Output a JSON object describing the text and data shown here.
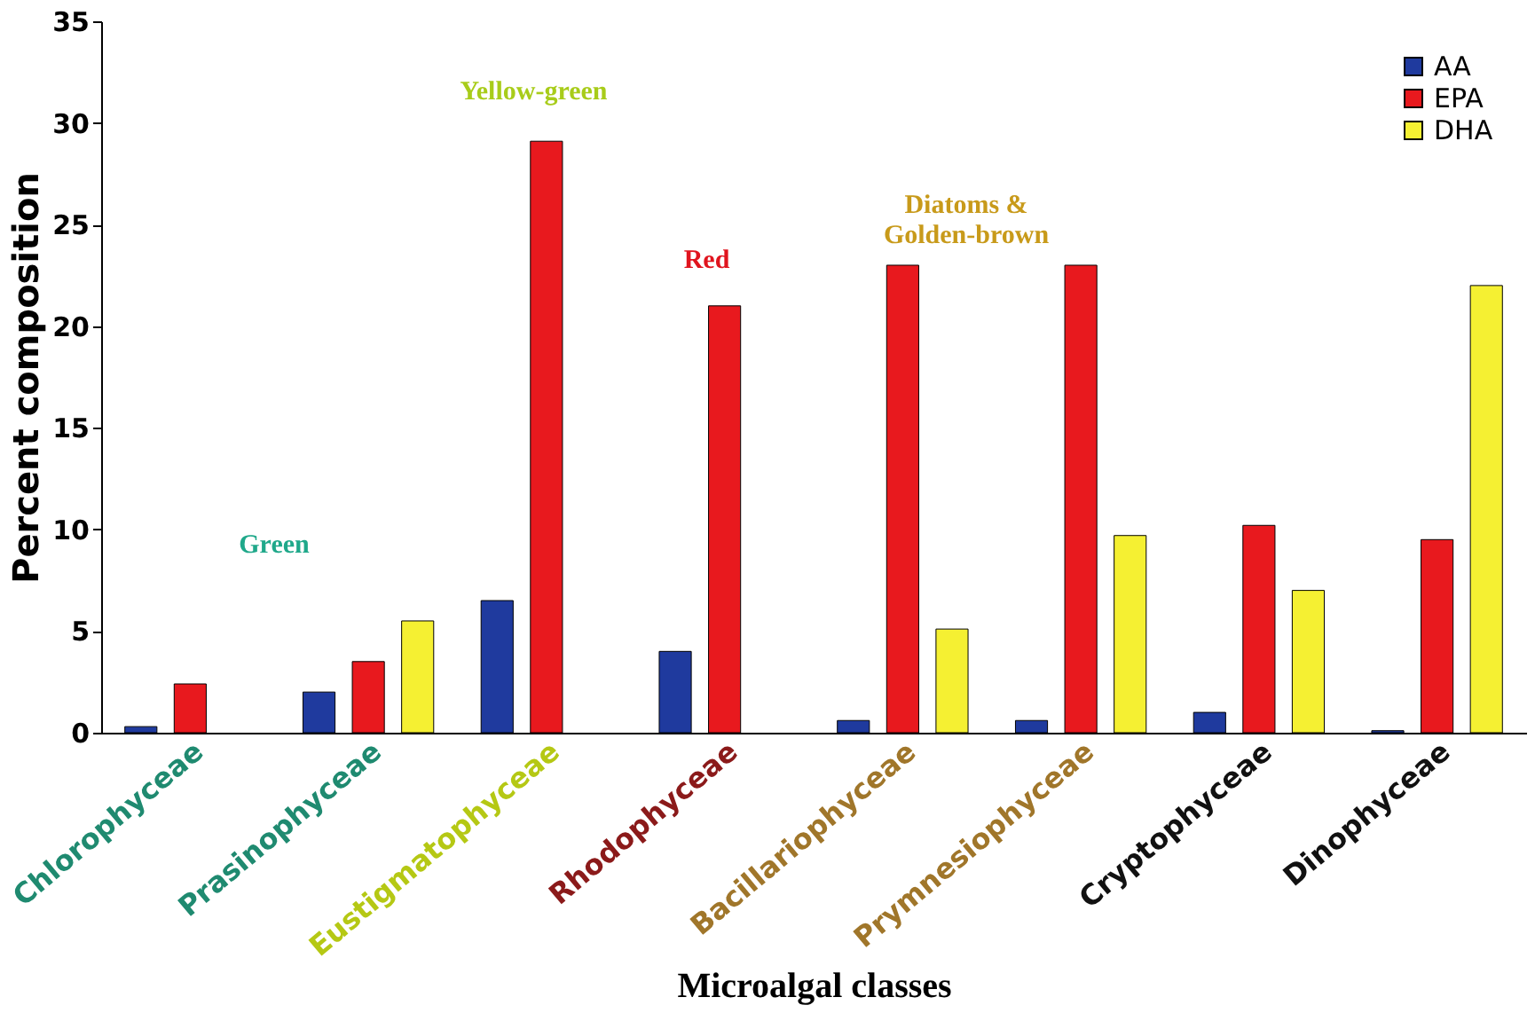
{
  "chart_data": {
    "type": "bar",
    "xlabel": "Microalgal classes",
    "ylabel": "Percent composition",
    "categories": [
      "Chlorophyceae",
      "Prasinophyceae",
      "Eustigmatophyceae",
      "Rhodophyceae",
      "Bacillariophyceae",
      "Prymnesiophyceae",
      "Cryptophyceae",
      "Dinophyceae"
    ],
    "series": [
      {
        "name": "AA",
        "color": "#1f3a9e",
        "values": [
          0.3,
          2.0,
          6.5,
          4.0,
          0.6,
          0.6,
          1.0,
          0.1
        ]
      },
      {
        "name": "EPA",
        "color": "#e8191e",
        "values": [
          2.4,
          3.5,
          29.1,
          21.0,
          23.0,
          23.0,
          10.2,
          9.5
        ]
      },
      {
        "name": "DHA",
        "color": "#f5f032",
        "values": [
          null,
          5.5,
          null,
          null,
          5.1,
          9.7,
          7.0,
          22.0
        ]
      }
    ],
    "ylim": [
      0,
      35
    ],
    "yticks": [
      0,
      5,
      10,
      15,
      20,
      25,
      30,
      35
    ],
    "grid": false,
    "legend": "top right",
    "annotations": [
      "Green",
      "Yellow-green",
      "Red",
      "Diatoms & Golden-brown"
    ]
  }
}
